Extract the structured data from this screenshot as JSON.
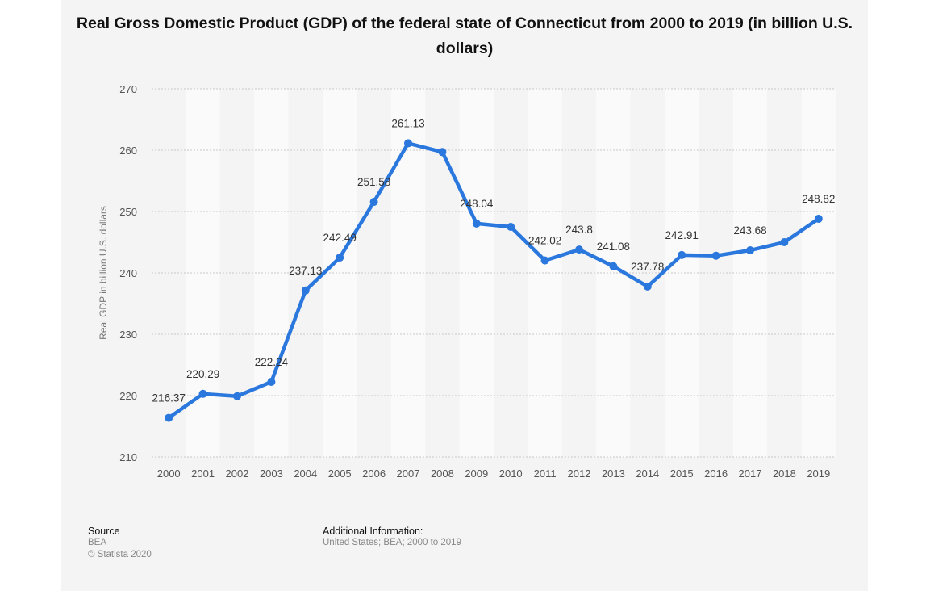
{
  "chart_data": {
    "type": "line",
    "title": "Real Gross Domestic Product (GDP) of the federal state of Connecticut from 2000 to 2019 (in billion U.S. dollars)",
    "xlabel": "",
    "ylabel": "Real GDP in billion U.S. dollars",
    "categories": [
      "2000",
      "2001",
      "2002",
      "2003",
      "2004",
      "2005",
      "2006",
      "2007",
      "2008",
      "2009",
      "2010",
      "2011",
      "2012",
      "2013",
      "2014",
      "2015",
      "2016",
      "2017",
      "2018",
      "2019"
    ],
    "values": [
      216.37,
      220.29,
      219.9,
      222.24,
      237.13,
      242.49,
      251.58,
      261.13,
      259.7,
      248.04,
      247.5,
      242.02,
      243.8,
      241.08,
      237.78,
      242.91,
      242.8,
      243.68,
      245.0,
      248.82
    ],
    "data_labels": [
      "216.37",
      "220.29",
      null,
      "222.24",
      "237.13",
      "242.49",
      "251.58",
      "261.13",
      null,
      "248.04",
      null,
      "242.02",
      "243.8",
      "241.08",
      "237.78",
      "242.91",
      null,
      "243.68",
      null,
      "248.82"
    ],
    "ylim": [
      210,
      270
    ],
    "yticks": [
      210,
      220,
      230,
      240,
      250,
      260,
      270
    ],
    "grid": true,
    "legend": "none",
    "line_color": "#2a77dd"
  },
  "footer": {
    "source_heading": "Source",
    "source": "BEA",
    "copyright": "© Statista 2020",
    "additional_heading": "Additional Information:",
    "additional": "United States; BEA; 2000 to 2019"
  }
}
